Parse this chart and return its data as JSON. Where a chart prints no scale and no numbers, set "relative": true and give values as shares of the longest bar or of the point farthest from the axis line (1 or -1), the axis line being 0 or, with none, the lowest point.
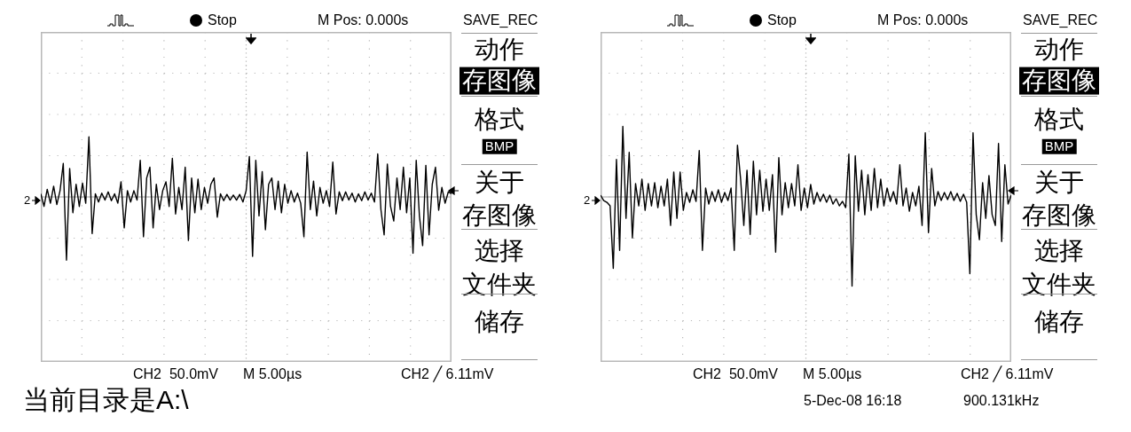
{
  "chart_data": [
    {
      "type": "line",
      "relative": true,
      "grid": true,
      "marker": "none",
      "line_style": "solid",
      "categories": [
        null,
        null,
        null,
        null,
        null,
        null,
        null,
        null,
        null,
        null,
        null,
        null,
        null,
        null,
        null,
        null,
        null,
        null,
        null,
        null,
        null,
        null,
        null,
        null,
        null,
        null,
        null,
        null,
        null,
        null,
        null,
        null,
        null,
        null,
        null,
        null,
        null,
        null,
        null,
        null,
        null,
        null,
        null,
        null,
        null,
        null,
        null,
        null,
        null,
        null,
        null,
        null,
        null,
        null,
        null,
        null,
        null,
        null,
        null,
        null,
        null,
        null,
        null,
        null,
        null,
        null,
        null,
        null,
        null,
        null,
        null,
        null,
        null,
        null,
        null,
        null,
        null,
        null,
        null,
        null,
        null,
        null,
        null,
        null,
        null,
        null,
        null,
        null,
        null,
        null,
        null,
        null,
        null,
        null,
        null,
        null,
        null,
        null,
        null,
        null,
        null,
        null,
        null,
        null,
        null,
        null,
        null,
        null,
        null,
        null,
        null,
        null,
        null,
        null,
        null,
        null,
        null,
        null,
        null,
        null,
        null,
        null,
        null,
        null,
        null,
        null,
        null,
        null,
        null
      ],
      "series": [
        {
          "color": "#000000",
          "values": [
            0.05,
            -0.15,
            0.12,
            -0.1,
            0.17,
            -0.12,
            0.1,
            0.53,
            -1.0,
            0.45,
            -0.25,
            0.2,
            -0.15,
            0.22,
            -0.1,
            0.95,
            -0.58,
            0.05,
            -0.08,
            0.06,
            -0.05,
            0.08,
            -0.06,
            0.05,
            -0.1,
            0.24,
            -0.49,
            0.1,
            -0.08,
            0.1,
            -0.05,
            0.58,
            -0.63,
            0.3,
            0.47,
            -0.49,
            0.2,
            -0.2,
            0.1,
            0.24,
            -0.15,
            0.61,
            -0.27,
            0.15,
            -0.2,
            0.47,
            -0.69,
            0.3,
            -0.25,
            0.28,
            -0.2,
            0.15,
            -0.1,
            0.2,
            0.3,
            -0.32,
            0.05,
            -0.06,
            0.04,
            -0.05,
            0.03,
            -0.05,
            0.04,
            -0.08,
            0.1,
            0.64,
            -0.94,
            0.58,
            -0.3,
            0.4,
            -0.52,
            0.2,
            0.3,
            -0.2,
            0.25,
            -0.25,
            0.2,
            -0.1,
            0.1,
            -0.08,
            0.06,
            -0.1,
            -0.63,
            0.71,
            -0.2,
            0.25,
            -0.3,
            0.15,
            -0.1,
            0.1,
            -0.15,
            0.55,
            -0.27,
            0.08,
            -0.06,
            0.08,
            -0.05,
            0.06,
            -0.08,
            0.05,
            -0.06,
            0.08,
            -0.05,
            0.06,
            -0.08,
            0.68,
            -0.2,
            -0.6,
            0.52,
            -0.15,
            -0.38,
            0.3,
            -0.2,
            0.47,
            -0.25,
            0.3,
            -0.89,
            0.58,
            -0.3,
            -0.77,
            0.5,
            -0.6,
            0.2,
            0.47,
            -0.21,
            0.15,
            -0.1,
            0.08,
            0.05
          ]
        }
      ],
      "annotations": [
        "2",
        "Stop",
        "M Pos: 0.000s",
        "SAVE_REC",
        "动作",
        "存图像",
        "格式",
        "BMP",
        "关于",
        "存图像",
        "选择",
        "文件夹",
        "储存",
        "CH2  50.0mV",
        "M 5.00µs",
        "CH2 ╱ 6.11mV",
        "当前目录是A:\\"
      ]
    },
    {
      "type": "line",
      "relative": true,
      "grid": true,
      "marker": "none",
      "line_style": "solid",
      "categories": [
        null,
        null,
        null,
        null,
        null,
        null,
        null,
        null,
        null,
        null,
        null,
        null,
        null,
        null,
        null,
        null,
        null,
        null,
        null,
        null,
        null,
        null,
        null,
        null,
        null,
        null,
        null,
        null,
        null,
        null,
        null,
        null,
        null,
        null,
        null,
        null,
        null,
        null,
        null,
        null,
        null,
        null,
        null,
        null,
        null,
        null,
        null,
        null,
        null,
        null,
        null,
        null,
        null,
        null,
        null,
        null,
        null,
        null,
        null,
        null,
        null,
        null,
        null,
        null,
        null,
        null,
        null,
        null,
        null,
        null,
        null,
        null,
        null,
        null,
        null,
        null,
        null,
        null,
        null,
        null,
        null,
        null,
        null,
        null,
        null,
        null,
        null,
        null,
        null,
        null,
        null,
        null,
        null,
        null,
        null,
        null,
        null,
        null,
        null,
        null,
        null,
        null,
        null,
        null,
        null,
        null,
        null,
        null,
        null,
        null,
        null,
        null,
        null,
        null,
        null,
        null,
        null,
        null,
        null,
        null,
        null,
        null,
        null,
        null,
        null,
        null,
        null,
        null,
        null,
        null
      ],
      "series": [
        {
          "color": "#000000",
          "values": [
            0.02,
            -0.04,
            -0.06,
            -0.1,
            -0.8,
            0.42,
            -0.6,
            0.79,
            -0.24,
            0.5,
            -0.46,
            0.15,
            -0.1,
            0.2,
            -0.15,
            0.15,
            -0.1,
            0.16,
            -0.12,
            0.12,
            -0.1,
            0.2,
            -0.32,
            0.28,
            -0.24,
            0.28,
            -0.15,
            0.05,
            -0.06,
            0.08,
            -0.05,
            0.52,
            -0.6,
            0.1,
            -0.08,
            0.06,
            -0.05,
            0.08,
            -0.06,
            0.05,
            -0.04,
            0.1,
            -0.6,
            0.58,
            0.2,
            -0.32,
            0.3,
            -0.42,
            0.4,
            -0.2,
            0.3,
            -0.16,
            0.2,
            -0.15,
            0.25,
            -0.62,
            0.44,
            -0.2,
            0.16,
            -0.12,
            0.15,
            -0.1,
            0.36,
            -0.15,
            0.1,
            -0.12,
            0.14,
            -0.08,
            0.05,
            -0.05,
            0.03,
            -0.06,
            0.02,
            -0.08,
            -0.02,
            -0.1,
            -0.05,
            -0.12,
            0.48,
            -1.0,
            0.46,
            -0.16,
            0.3,
            -0.2,
            0.25,
            -0.15,
            0.32,
            -0.12,
            0.2,
            -0.1,
            0.1,
            -0.05,
            0.06,
            -0.08,
            0.36,
            -0.1,
            0.1,
            -0.16,
            0.05,
            -0.1,
            0.12,
            -0.32,
            0.72,
            -0.4,
            0.32,
            -0.1,
            0.06,
            -0.04,
            0.05,
            -0.03,
            0.06,
            -0.04,
            0.04,
            -0.05,
            0.03,
            -0.06,
            -0.86,
            0.72,
            -0.2,
            -0.48,
            0.16,
            -0.24,
            0.24,
            -0.2,
            -0.32,
            0.6,
            -0.5,
            0.36,
            -0.08,
            0.02
          ]
        }
      ],
      "annotations": [
        "2",
        "Stop",
        "M Pos: 0.000s",
        "SAVE_REC",
        "动作",
        "存图像",
        "格式",
        "BMP",
        "关于",
        "存图像",
        "选择",
        "文件夹",
        "储存",
        "CH2  50.0mV",
        "M 5.00µs",
        "CH2 ╱ 6.11mV",
        "5-Dec-08 16:18",
        "900.131kHz"
      ]
    }
  ]
}
